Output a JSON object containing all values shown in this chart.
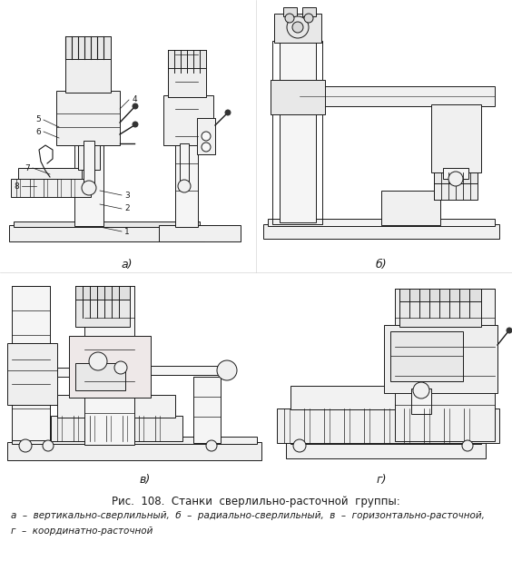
{
  "title_line": "Рис.  108.  Станки  сверлильно-расточной  группы:",
  "caption_line1": "а  –  вертикально-сверлильный,  б  –  радиально-сверлильный,  в  –  горизонтально-расточной,",
  "caption_line2": "г  –  координатно-расточной",
  "label_a": "а)",
  "label_b": "б)",
  "label_v": "в)",
  "label_g": "г)",
  "bg_color": "#ffffff",
  "line_color": "#1a1a1a",
  "fig_width": 5.64,
  "fig_height": 6.18,
  "dpi": 100
}
